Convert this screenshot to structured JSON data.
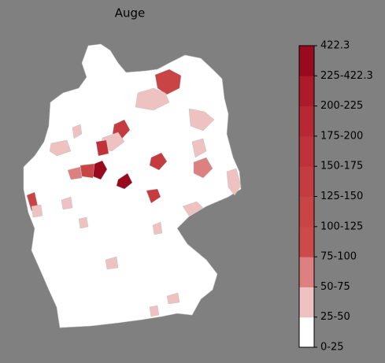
{
  "title": "Auge",
  "colorbar": {
    "labels": [
      "0-25",
      "25-50",
      "50-75",
      "75-100",
      "100-125",
      "125-150",
      "150-175",
      "175-200",
      "200-225",
      "225-422.3",
      "422.3"
    ],
    "colors": [
      "#ffffff",
      "#efc2c2",
      "#dc8080",
      "#cc4a4a",
      "#c94545",
      "#c43c3f",
      "#bf3239",
      "#b82833",
      "#ad1a2a",
      "#9a0a1f"
    ]
  }
}
